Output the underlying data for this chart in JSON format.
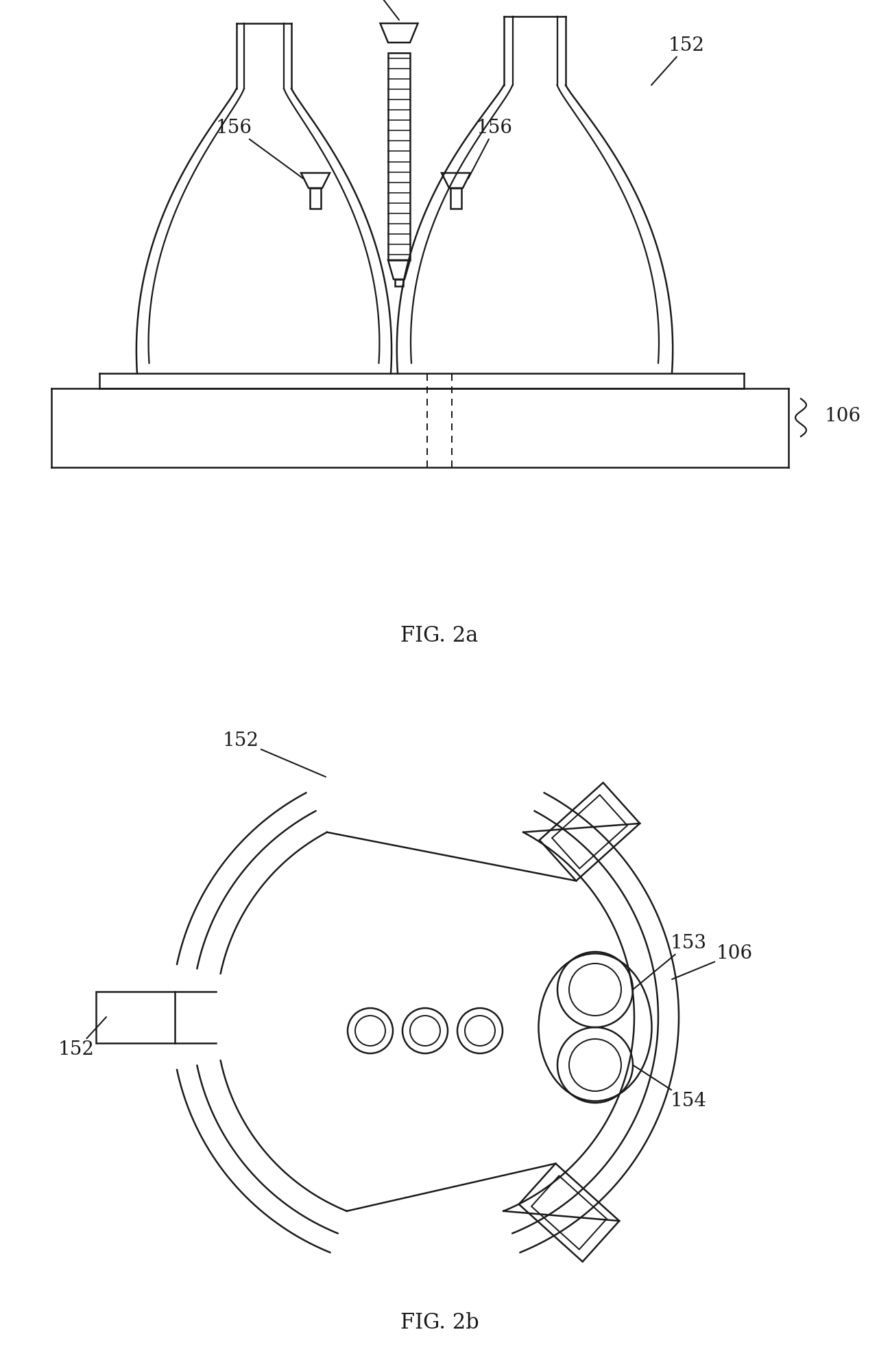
{
  "bg_color": "#ffffff",
  "line_color": "#1a1a1a",
  "lw": 1.8,
  "fig_label_a": "FIG. 2a",
  "fig_label_b": "FIG. 2b"
}
